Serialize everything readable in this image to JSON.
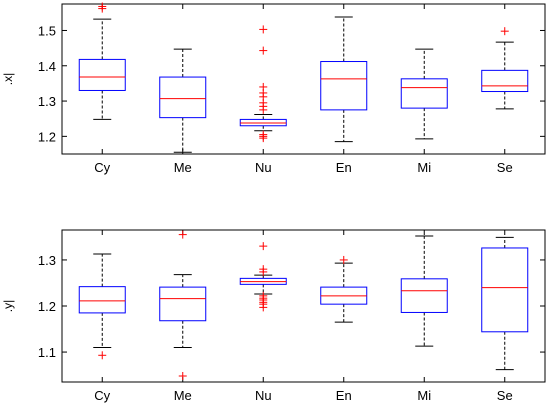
{
  "chart_data": [
    {
      "type": "box",
      "ylabel": ".x|",
      "ylim": [
        1.15,
        1.575
      ],
      "yticks": [
        1.2,
        1.3,
        1.4,
        1.5
      ],
      "ytick_labels": [
        "1.2",
        "1.3",
        "1.4",
        "1.5"
      ],
      "categories": [
        "Cy",
        "Me",
        "Nu",
        "En",
        "Mi",
        "Se"
      ],
      "boxes": [
        {
          "whisker_low": 1.248,
          "q1": 1.33,
          "median": 1.368,
          "q3": 1.418,
          "whisker_high": 1.532,
          "outliers": [
            1.562,
            1.568
          ]
        },
        {
          "whisker_low": 1.155,
          "q1": 1.253,
          "median": 1.307,
          "q3": 1.368,
          "whisker_high": 1.447,
          "outliers": []
        },
        {
          "whisker_low": 1.216,
          "q1": 1.23,
          "median": 1.238,
          "q3": 1.248,
          "whisker_high": 1.262,
          "outliers": [
            1.195,
            1.2,
            1.205,
            1.275,
            1.285,
            1.295,
            1.312,
            1.323,
            1.34,
            1.443,
            1.503
          ]
        },
        {
          "whisker_low": 1.185,
          "q1": 1.275,
          "median": 1.363,
          "q3": 1.412,
          "whisker_high": 1.538,
          "outliers": []
        },
        {
          "whisker_low": 1.193,
          "q1": 1.28,
          "median": 1.338,
          "q3": 1.363,
          "whisker_high": 1.447,
          "outliers": []
        },
        {
          "whisker_low": 1.278,
          "q1": 1.327,
          "median": 1.343,
          "q3": 1.387,
          "whisker_high": 1.467,
          "outliers": [
            1.498
          ]
        }
      ]
    },
    {
      "type": "box",
      "ylabel": ".y|",
      "ylim": [
        1.035,
        1.365
      ],
      "yticks": [
        1.1,
        1.2,
        1.3
      ],
      "ytick_labels": [
        "1.1",
        "1.2",
        "1.3"
      ],
      "categories": [
        "Cy",
        "Me",
        "Nu",
        "En",
        "Mi",
        "Se"
      ],
      "boxes": [
        {
          "whisker_low": 1.11,
          "q1": 1.185,
          "median": 1.211,
          "q3": 1.242,
          "whisker_high": 1.313,
          "outliers": [
            1.093
          ]
        },
        {
          "whisker_low": 1.11,
          "q1": 1.168,
          "median": 1.216,
          "q3": 1.241,
          "whisker_high": 1.268,
          "outliers": [
            1.048,
            1.355
          ]
        },
        {
          "whisker_low": 1.226,
          "q1": 1.247,
          "median": 1.253,
          "q3": 1.26,
          "whisker_high": 1.267,
          "outliers": [
            1.197,
            1.204,
            1.208,
            1.213,
            1.217,
            1.222,
            1.274,
            1.28,
            1.33
          ]
        },
        {
          "whisker_low": 1.165,
          "q1": 1.204,
          "median": 1.222,
          "q3": 1.241,
          "whisker_high": 1.293,
          "outliers": [
            1.3
          ]
        },
        {
          "whisker_low": 1.113,
          "q1": 1.186,
          "median": 1.233,
          "q3": 1.259,
          "whisker_high": 1.352,
          "outliers": []
        },
        {
          "whisker_low": 1.062,
          "q1": 1.144,
          "median": 1.24,
          "q3": 1.326,
          "whisker_high": 1.349,
          "outliers": []
        }
      ]
    }
  ]
}
